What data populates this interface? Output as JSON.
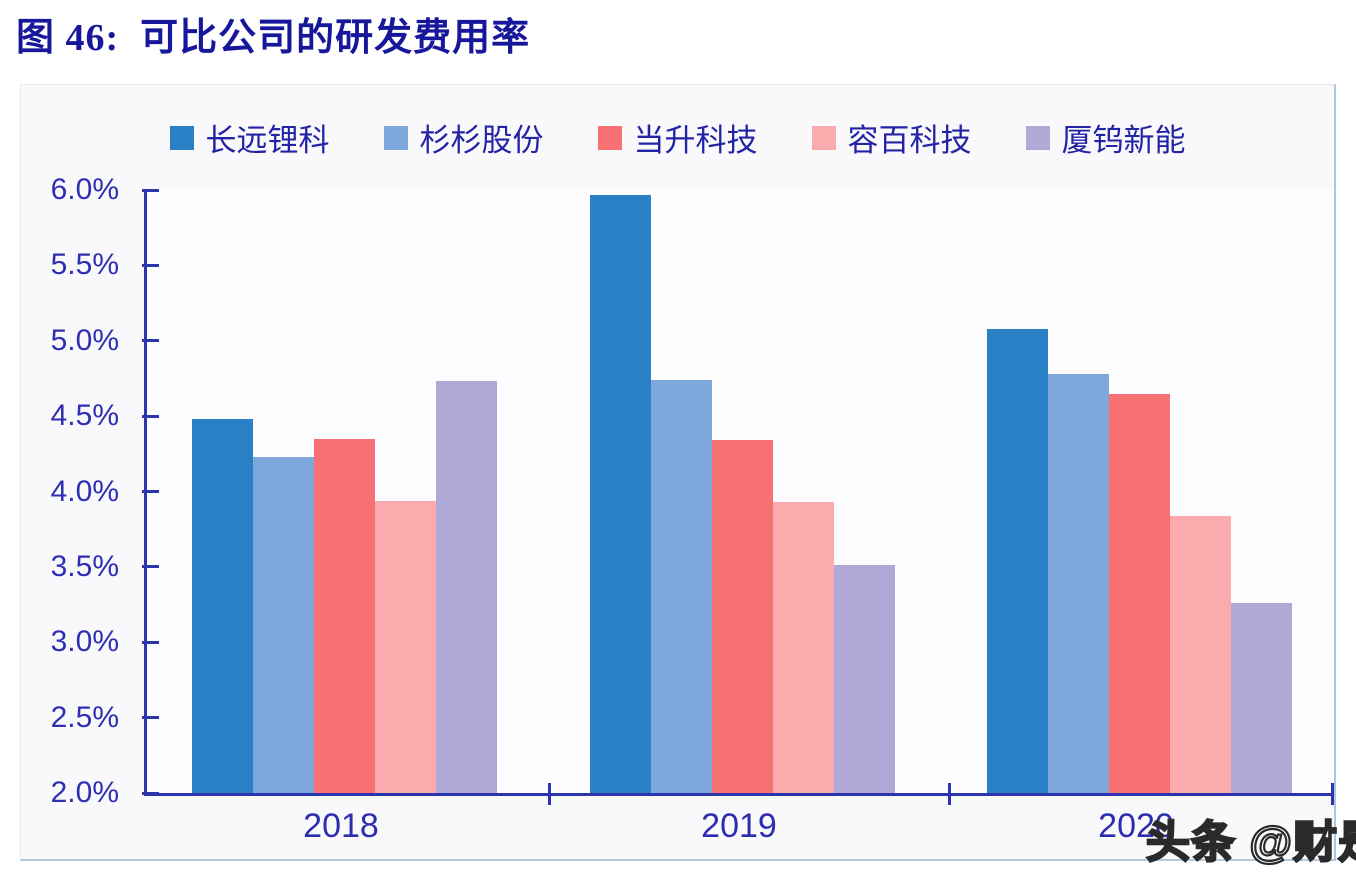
{
  "figure_title": "图 46:  可比公司的研发费用率",
  "watermark_text": "头条 @财是",
  "chart_data": {
    "type": "bar",
    "title": "可比公司的研发费用率",
    "categories": [
      "2018",
      "2019",
      "2020"
    ],
    "series": [
      {
        "name": "长远锂科",
        "color": "#2a80c5",
        "values": [
          4.48,
          5.97,
          5.08
        ]
      },
      {
        "name": "杉杉股份",
        "color": "#7ea7db",
        "values": [
          4.23,
          4.74,
          4.78
        ]
      },
      {
        "name": "当升科技",
        "color": "#f77173",
        "values": [
          4.35,
          4.34,
          4.65
        ]
      },
      {
        "name": "容百科技",
        "color": "#fbabad",
        "values": [
          3.94,
          3.93,
          3.84
        ]
      },
      {
        "name": "厦钨新能",
        "color": "#aea9d6",
        "values": [
          4.73,
          3.51,
          3.26
        ]
      }
    ],
    "xlabel": "",
    "ylabel": "",
    "unit": "percent",
    "ylim": [
      2.0,
      6.0
    ],
    "y_tick_step": 0.5,
    "y_tick_labels": [
      "6.0%",
      "5.5%",
      "5.0%",
      "4.5%",
      "4.0%",
      "3.5%",
      "3.0%",
      "2.5%",
      "2.0%"
    ],
    "grid": false,
    "legend_position": "top"
  },
  "colors": {
    "title_text": "#17179c",
    "axis_line": "#2c35ad",
    "tick_label": "#2e2fb2",
    "legend_label": "#2323a5",
    "card_background": "#f9f9fc",
    "watermark_fill": "#ffffff",
    "watermark_outline": "#2a2a2a"
  }
}
